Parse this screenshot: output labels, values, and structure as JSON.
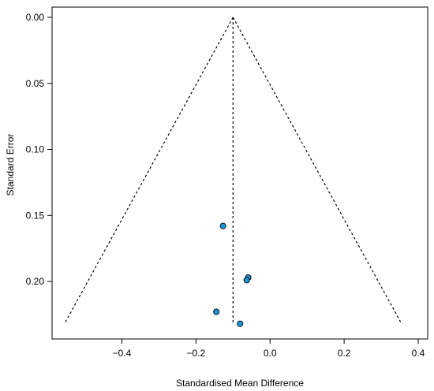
{
  "chart_data": {
    "type": "scatter",
    "subtype": "funnel",
    "title": "",
    "xlabel": "Standardised Mean Difference",
    "ylabel": "Standard Error",
    "xlim": [
      -0.58,
      0.4
    ],
    "ylim": [
      0.0,
      0.234
    ],
    "y_reversed": true,
    "x_ticks": [
      -0.4,
      -0.2,
      0.0,
      0.2,
      0.4
    ],
    "x_tick_labels": [
      "−0.4",
      "−0.2",
      "0.0",
      "0.2",
      "0.4"
    ],
    "y_ticks": [
      0.0,
      0.05,
      0.1,
      0.15,
      0.2
    ],
    "y_tick_labels": [
      "0.00",
      "0.05",
      "0.10",
      "0.15",
      "0.20"
    ],
    "grid": false,
    "pooled_estimate": -0.1,
    "funnel_limits": {
      "apex": [
        -0.1,
        0.0
      ],
      "left_base": [
        -0.555,
        0.232
      ],
      "right_base": [
        0.355,
        0.232
      ]
    },
    "series": [
      {
        "points": [
          {
            "x": -0.127,
            "y": 0.158
          },
          {
            "x": -0.059,
            "y": 0.197
          },
          {
            "x": -0.063,
            "y": 0.199
          },
          {
            "x": -0.145,
            "y": 0.223
          },
          {
            "x": -0.081,
            "y": 0.232
          }
        ]
      }
    ],
    "colors": {
      "point_fill": "#1a96d6",
      "point_stroke": "#000000",
      "line": "#000000"
    }
  }
}
